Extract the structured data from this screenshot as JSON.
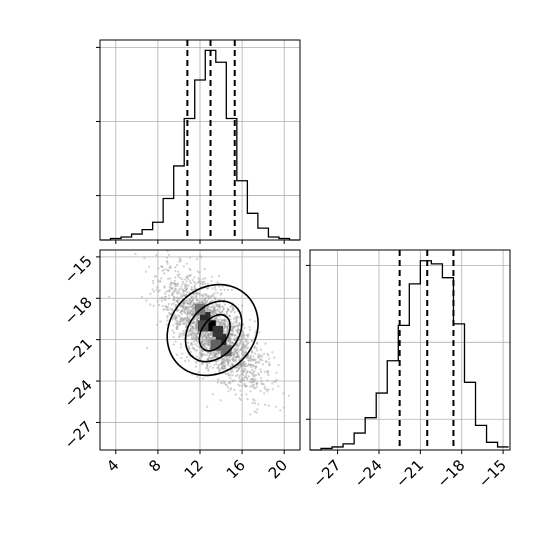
{
  "chart_data": {
    "type": "corner",
    "parameters": [
      {
        "id": "param-1",
        "range": [
          2.5,
          21.5
        ],
        "ticks": [
          4,
          8,
          12,
          16,
          20
        ],
        "tick_labels": [
          "4",
          "8",
          "12",
          "16",
          "20"
        ],
        "quantiles": [
          10.8,
          13.0,
          15.3
        ],
        "histogram": {
          "bin_edges": [
            2.5,
            3.5,
            4.5,
            5.5,
            6.5,
            7.5,
            8.5,
            9.5,
            10.5,
            11.5,
            12.5,
            13.5,
            14.5,
            15.5,
            16.5,
            17.5,
            18.5,
            19.5,
            20.5,
            21.5
          ],
          "counts": [
            0,
            1,
            2,
            4,
            7,
            12,
            28,
            50,
            82,
            108,
            128,
            120,
            82,
            40,
            18,
            8,
            2,
            1,
            0
          ],
          "ylim": [
            0,
            135
          ],
          "yticks": [
            30,
            80,
            130
          ]
        }
      },
      {
        "id": "param-2",
        "range": [
          -29.0,
          -14.5
        ],
        "ticks": [
          -27,
          -24,
          -21,
          -18,
          -15
        ],
        "tick_labels": [
          "−27",
          "−24",
          "−21",
          "−18",
          "−15"
        ],
        "quantiles": [
          -22.5,
          -20.5,
          -18.6
        ],
        "histogram": {
          "bin_edges": [
            -29.0,
            -28.2,
            -27.4,
            -26.6,
            -25.8,
            -25.0,
            -24.2,
            -23.4,
            -22.6,
            -21.8,
            -21.0,
            -20.2,
            -19.4,
            -18.6,
            -17.8,
            -17.0,
            -16.2,
            -15.4,
            -14.6
          ],
          "counts": [
            0,
            1,
            2,
            4,
            11,
            21,
            37,
            58,
            81,
            108,
            123,
            121,
            112,
            82,
            44,
            16,
            5,
            2
          ],
          "ylim": [
            0,
            130
          ],
          "yticks": [
            20,
            70,
            120
          ]
        }
      }
    ],
    "joint": {
      "x_param": "param-1",
      "y_param": "param-2",
      "mean": [
        13.2,
        -20.4
      ],
      "std": [
        2.3,
        2.0
      ],
      "correlation": -0.7,
      "scatter_count": 2200,
      "density_cells": [
        {
          "x": 13.0,
          "y": -20.0,
          "level": 1.0
        },
        {
          "x": 12.5,
          "y": -19.4,
          "level": 0.8
        },
        {
          "x": 14.0,
          "y": -21.0,
          "level": 0.8
        },
        {
          "x": 13.7,
          "y": -20.4,
          "level": 0.75
        },
        {
          "x": 12.3,
          "y": -20.0,
          "level": 0.65
        },
        {
          "x": 13.5,
          "y": -21.4,
          "level": 0.55
        },
        {
          "x": 14.5,
          "y": -21.8,
          "level": 0.5
        },
        {
          "x": 12.0,
          "y": -18.8,
          "level": 0.45
        }
      ],
      "contours": [
        {
          "level": "39%",
          "cx": 13.4,
          "cy": -20.5,
          "rx": 1.8,
          "ry": 0.9,
          "angle": -57
        },
        {
          "level": "86%",
          "cx": 13.3,
          "cy": -20.4,
          "rx": 3.0,
          "ry": 1.7,
          "angle": -52
        },
        {
          "level": "98%",
          "cx": 13.2,
          "cy": -20.3,
          "rx": 4.4,
          "ry": 2.9,
          "angle": -45
        }
      ],
      "yticks": [
        -27,
        -24,
        -21,
        -18,
        -15
      ],
      "ytick_labels": [
        "−27",
        "−24",
        "−21",
        "−18",
        "−15"
      ]
    },
    "grid": true,
    "colors": {
      "line": "#000000",
      "scatter": "#9a9a9a",
      "grid": "#b0b0b0",
      "density_dark": "#000000",
      "density_light": "#cccccc"
    }
  }
}
